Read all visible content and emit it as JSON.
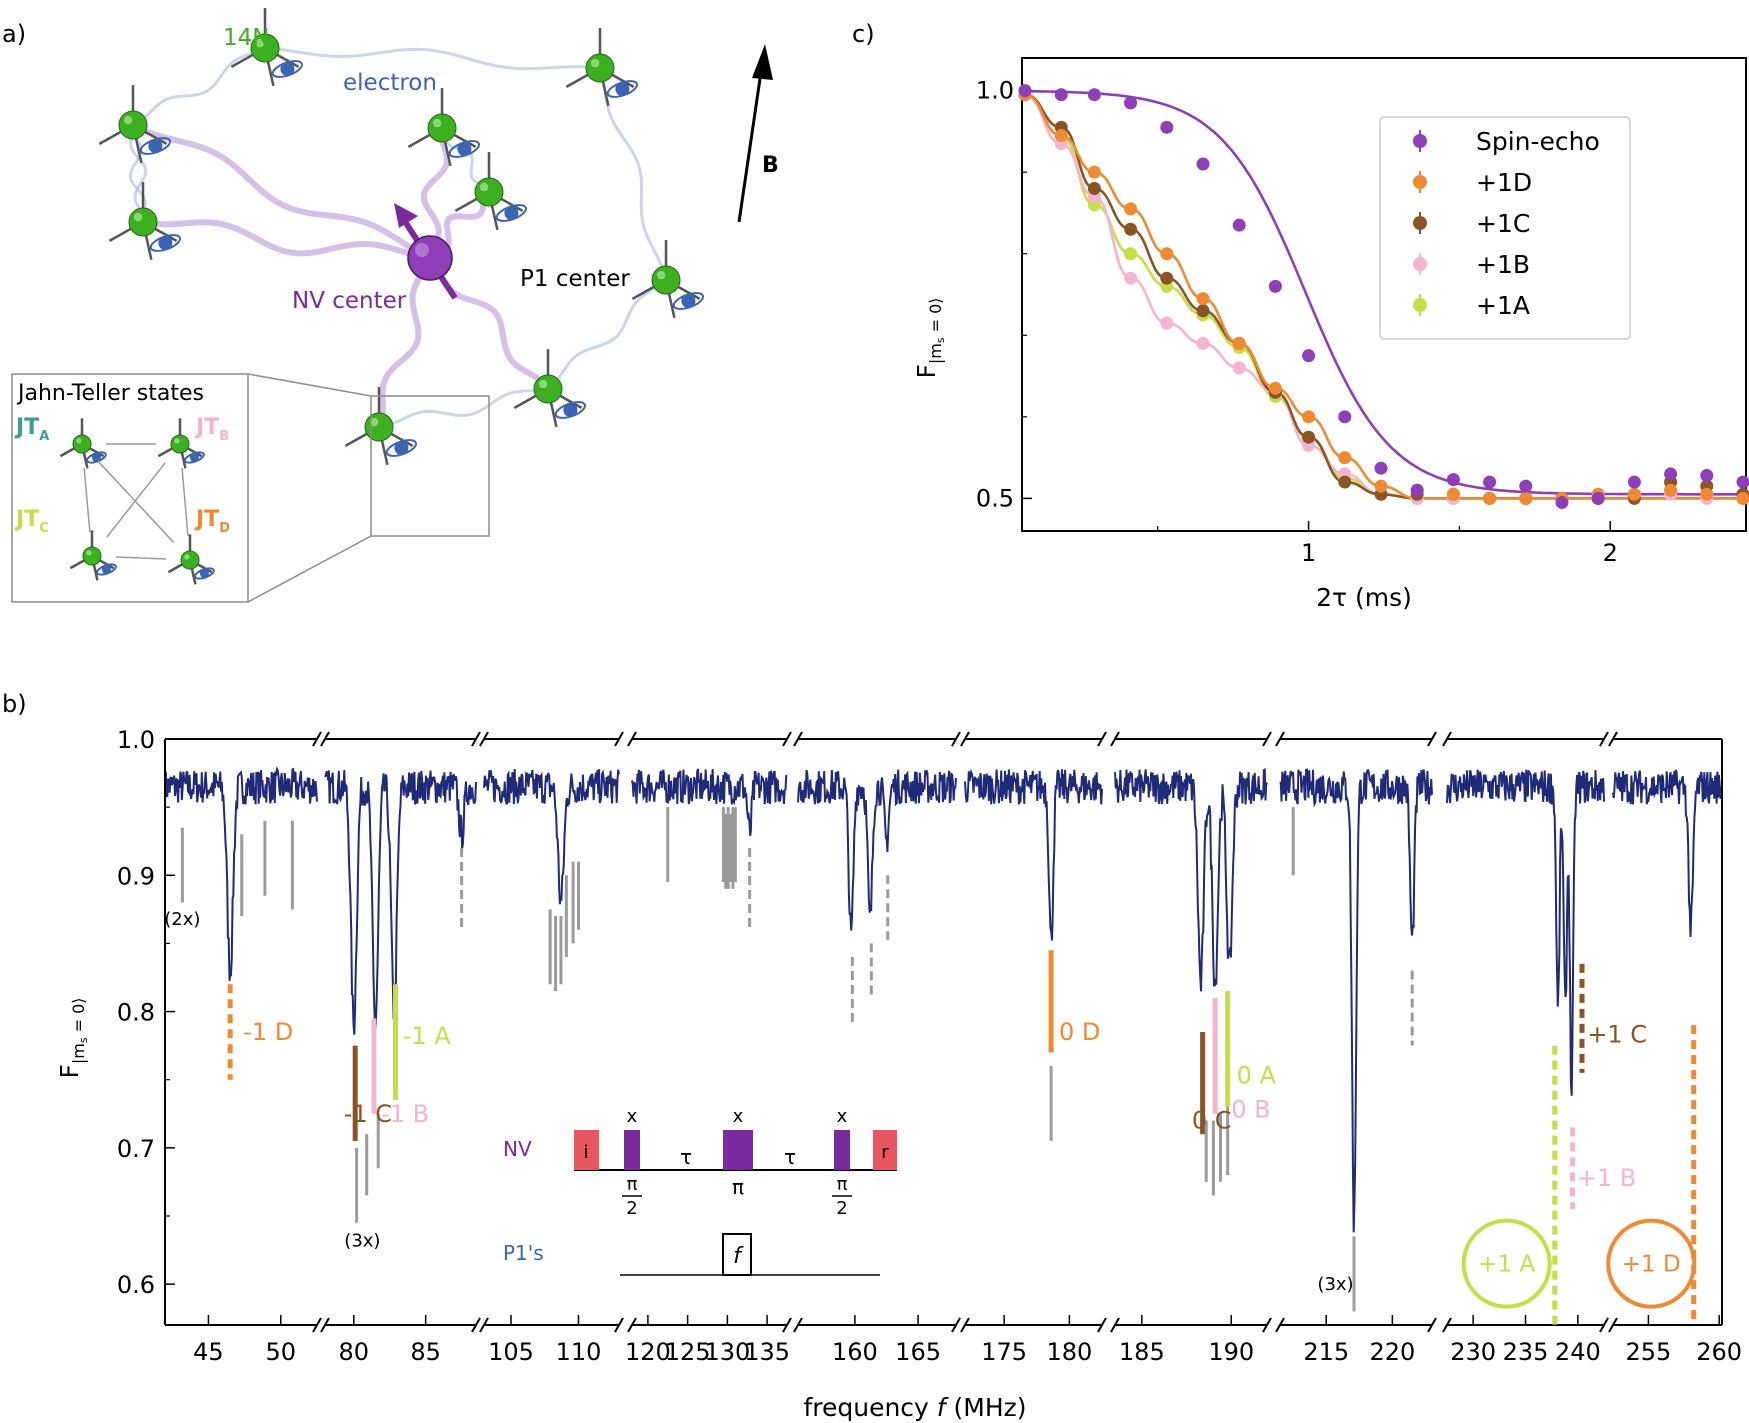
{
  "panel_labels": {
    "a": "a)",
    "b": "b)",
    "c": "c)"
  },
  "colors": {
    "spectrum": "#1f2a78",
    "spin_echo": "#8e3fb8",
    "D": "#f08a32",
    "C": "#8b5424",
    "B": "#f6b3cf",
    "A": "#c3de46",
    "gray": "#9a9a9a",
    "nitrogen": "#3cb020",
    "electron": "#3a64b4",
    "nv": "#7a2a9c",
    "jt_A": "#3c9e8e"
  },
  "panel_a": {
    "label_14n": "14N",
    "label_electron": "electron",
    "label_nv": "NV center",
    "label_p1": "P1 center",
    "label_b": "B",
    "inset_title": "Jahn-Teller states",
    "jt_letter": "JT",
    "jt_subs": [
      "A",
      "B",
      "C",
      "D"
    ],
    "icons": [
      "nitrogen-atom-icon",
      "electron-spin-icon",
      "nv-spin-arrow-icon",
      "magnetic-field-arrow-icon"
    ]
  },
  "chart_data": [
    {
      "type": "line",
      "id": "panel_c",
      "xlabel": "2τ (ms)",
      "ylabel_main": "F",
      "ylabel_sub": "|m",
      "ylabel_sub2": "s",
      "ylabel_sub3": " = 0⟩",
      "xlim": [
        0.05,
        2.45
      ],
      "ylim": [
        0.46,
        1.04
      ],
      "xticks": [
        1,
        2
      ],
      "xtick_labels": [
        "1",
        "2"
      ],
      "yticks": [
        0.5,
        1.0
      ],
      "ytick_labels": [
        "0.5",
        "1.0"
      ],
      "legend": [
        "Spin-echo",
        "+1D",
        "+1C",
        "+1B",
        "+1A"
      ],
      "legend_position": "top-right",
      "series": [
        {
          "name": "Spin-echo",
          "color": "#8e3fb8",
          "x": [
            0.06,
            0.18,
            0.29,
            0.41,
            0.53,
            0.65,
            0.77,
            0.89,
            1.0,
            1.12,
            1.24,
            1.36,
            1.48,
            1.6,
            1.72,
            1.84,
            1.96,
            2.08,
            2.2,
            2.32,
            2.44
          ],
          "y": [
            1.0,
            0.995,
            0.995,
            0.985,
            0.955,
            0.91,
            0.835,
            0.76,
            0.675,
            0.6,
            0.537,
            0.51,
            0.523,
            0.52,
            0.515,
            0.495,
            0.5,
            0.52,
            0.53,
            0.528,
            0.52
          ],
          "fit_center": 0.99,
          "fit_width": 0.14
        },
        {
          "name": "+1D",
          "color": "#f08a32",
          "x": [
            0.06,
            0.18,
            0.29,
            0.41,
            0.53,
            0.65,
            0.77,
            0.89,
            1.0,
            1.12,
            1.24,
            1.36,
            1.48,
            1.6,
            1.72,
            1.84,
            1.96,
            2.08,
            2.2,
            2.32,
            2.44
          ],
          "y": [
            0.995,
            0.945,
            0.9,
            0.855,
            0.8,
            0.745,
            0.69,
            0.635,
            0.6,
            0.55,
            0.515,
            0.51,
            0.505,
            0.5,
            0.5,
            0.5,
            0.505,
            0.505,
            0.51,
            0.505,
            0.5
          ]
        },
        {
          "name": "+1C",
          "color": "#8b5424",
          "x": [
            0.06,
            0.18,
            0.29,
            0.41,
            0.53,
            0.65,
            0.77,
            0.89,
            1.0,
            1.12,
            1.24,
            1.36,
            1.48,
            1.6,
            1.72,
            1.84,
            1.96,
            2.08,
            2.2,
            2.32,
            2.44
          ],
          "y": [
            0.995,
            0.955,
            0.88,
            0.83,
            0.77,
            0.73,
            0.69,
            0.63,
            0.575,
            0.52,
            0.505,
            0.505,
            0.505,
            0.5,
            0.5,
            0.5,
            0.5,
            0.5,
            0.52,
            0.515,
            0.505
          ]
        },
        {
          "name": "+1B",
          "color": "#f6b3cf",
          "x": [
            0.06,
            0.18,
            0.29,
            0.41,
            0.53,
            0.65,
            0.77,
            0.89,
            1.0,
            1.12,
            1.24,
            1.36,
            1.48,
            1.6,
            1.72,
            1.84,
            1.96,
            2.08,
            2.2,
            2.32,
            2.44
          ],
          "y": [
            0.995,
            0.935,
            0.87,
            0.77,
            0.715,
            0.69,
            0.66,
            0.63,
            0.565,
            0.53,
            0.505,
            0.5,
            0.5,
            0.5,
            0.5,
            0.5,
            0.5,
            0.505,
            0.505,
            0.5,
            0.5
          ]
        },
        {
          "name": "+1A",
          "color": "#c3de46",
          "x": [
            0.06,
            0.18,
            0.29,
            0.41,
            0.53,
            0.65,
            0.77,
            0.89,
            1.0,
            1.12,
            1.24,
            1.36,
            1.48,
            1.6,
            1.72,
            1.84,
            1.96,
            2.08,
            2.2,
            2.32,
            2.44
          ],
          "y": [
            0.995,
            0.945,
            0.86,
            0.8,
            0.76,
            0.725,
            0.685,
            0.625,
            0.575,
            0.525,
            0.505,
            0.5,
            0.5,
            0.5,
            0.5,
            0.5,
            0.505,
            0.505,
            0.51,
            0.505,
            0.5
          ]
        }
      ]
    },
    {
      "type": "line",
      "id": "panel_b",
      "xlabel_pre": "frequency ",
      "xlabel_var": "f",
      "xlabel_post": " (MHz)",
      "ylabel_main": "F",
      "ylabel_sub": "|m",
      "ylabel_sub2": "s",
      "ylabel_sub3": " = 0⟩",
      "ylim": [
        0.57,
        1.0
      ],
      "yticks": [
        0.6,
        0.7,
        0.8,
        0.9,
        1.0
      ],
      "ytick_labels": [
        "0.6",
        "0.7",
        "0.8",
        "0.9",
        "1.0"
      ],
      "baseline": 0.965,
      "segments": [
        {
          "range": [
            42,
            52.5
          ],
          "ticks": [
            45,
            50
          ],
          "dips": [
            {
              "f": 46.5,
              "d": 0.83,
              "w": 0.28
            }
          ]
        },
        {
          "range": [
            78,
            88.5
          ],
          "ticks": [
            80,
            85
          ],
          "dips": [
            {
              "f": 80,
              "d": 0.79,
              "w": 0.28
            },
            {
              "f": 81.5,
              "d": 0.79,
              "w": 0.28
            },
            {
              "f": 82.8,
              "d": 0.8,
              "w": 0.28
            },
            {
              "f": 87.5,
              "d": 0.93,
              "w": 0.25
            }
          ]
        },
        {
          "range": [
            103,
            113
          ],
          "ticks": [
            105,
            110
          ],
          "dips": [
            {
              "f": 108.7,
              "d": 0.88,
              "w": 0.3
            }
          ]
        },
        {
          "range": [
            118,
            137.5
          ],
          "ticks": [
            120,
            125,
            130,
            135
          ],
          "dips": [
            {
              "f": 132.8,
              "d": 0.93,
              "w": 0.35
            }
          ]
        },
        {
          "range": [
            155.5,
            168
          ],
          "ticks": [
            160,
            165
          ],
          "dips": [
            {
              "f": 159.7,
              "d": 0.855,
              "w": 0.25
            },
            {
              "f": 161.2,
              "d": 0.865,
              "w": 0.25
            },
            {
              "f": 162.5,
              "d": 0.925,
              "w": 0.25
            }
          ]
        },
        {
          "range": [
            172,
            182.5
          ],
          "ticks": [
            175,
            180
          ],
          "dips": [
            {
              "f": 178.6,
              "d": 0.85,
              "w": 0.22
            }
          ]
        },
        {
          "range": [
            183.5,
            192
          ],
          "ticks": [
            185,
            190
          ],
          "dips": [
            {
              "f": 188.3,
              "d": 0.82,
              "w": 0.22
            },
            {
              "f": 189.1,
              "d": 0.82,
              "w": 0.22
            },
            {
              "f": 189.9,
              "d": 0.83,
              "w": 0.22
            }
          ]
        },
        {
          "range": [
            211.5,
            223
          ],
          "ticks": [
            215,
            220
          ],
          "dips": [
            {
              "f": 217.1,
              "d": 0.645,
              "w": 0.22
            },
            {
              "f": 221.5,
              "d": 0.85,
              "w": 0.22
            }
          ]
        },
        {
          "range": [
            227.5,
            242.5
          ],
          "ticks": [
            230,
            235,
            240
          ],
          "dips": [
            {
              "f": 238.1,
              "d": 0.8,
              "w": 0.22
            },
            {
              "f": 238.8,
              "d": 0.8,
              "w": 0.22
            },
            {
              "f": 239.4,
              "d": 0.74,
              "w": 0.22
            }
          ]
        },
        {
          "range": [
            252.5,
            260.2
          ],
          "ticks": [
            255,
            260
          ],
          "dips": [
            {
              "f": 258,
              "d": 0.86,
              "w": 0.22
            }
          ]
        }
      ],
      "markers": [
        {
          "f": 43.2,
          "top": 0.935,
          "bottom": 0.88,
          "color": "#9a9a9a",
          "dash": false
        },
        {
          "f": 47.3,
          "top": 0.93,
          "bottom": 0.87,
          "color": "#9a9a9a",
          "dash": false
        },
        {
          "f": 48.9,
          "top": 0.94,
          "bottom": 0.885,
          "color": "#9a9a9a",
          "dash": false
        },
        {
          "f": 50.8,
          "top": 0.94,
          "bottom": 0.875,
          "color": "#9a9a9a",
          "dash": false
        },
        {
          "f": 46.5,
          "top": 0.82,
          "bottom": 0.75,
          "color": "#f08a32",
          "dash": true
        },
        {
          "f": 80.1,
          "top": 0.775,
          "bottom": 0.705,
          "color": "#8b5424",
          "dash": false
        },
        {
          "f": 81.4,
          "top": 0.795,
          "bottom": 0.725,
          "color": "#f6b3cf",
          "dash": false
        },
        {
          "f": 82.9,
          "top": 0.82,
          "bottom": 0.735,
          "color": "#c3de46",
          "dash": false
        },
        {
          "f": 80.2,
          "top": 0.7,
          "bottom": 0.645,
          "color": "#9a9a9a",
          "dash": false
        },
        {
          "f": 80.9,
          "top": 0.71,
          "bottom": 0.665,
          "color": "#9a9a9a",
          "dash": false
        },
        {
          "f": 81.7,
          "top": 0.725,
          "bottom": 0.685,
          "color": "#9a9a9a",
          "dash": false
        },
        {
          "f": 87.5,
          "top": 0.92,
          "bottom": 0.86,
          "color": "#9a9a9a",
          "dash": true
        },
        {
          "f": 107.9,
          "top": 0.875,
          "bottom": 0.82,
          "color": "#9a9a9a",
          "dash": false
        },
        {
          "f": 108.3,
          "top": 0.87,
          "bottom": 0.815,
          "color": "#9a9a9a",
          "dash": false
        },
        {
          "f": 108.7,
          "top": 0.87,
          "bottom": 0.82,
          "color": "#9a9a9a",
          "dash": false
        },
        {
          "f": 109.1,
          "top": 0.9,
          "bottom": 0.84,
          "color": "#9a9a9a",
          "dash": false
        },
        {
          "f": 109.6,
          "top": 0.91,
          "bottom": 0.85,
          "color": "#9a9a9a",
          "dash": false
        },
        {
          "f": 110,
          "top": 0.91,
          "bottom": 0.86,
          "color": "#9a9a9a",
          "dash": false
        },
        {
          "f": 122.5,
          "top": 0.95,
          "bottom": 0.895,
          "color": "#9a9a9a",
          "dash": false
        },
        {
          "f": 129.5,
          "top": 0.95,
          "bottom": 0.895,
          "color": "#9a9a9a",
          "dash": false
        },
        {
          "f": 129.8,
          "top": 0.945,
          "bottom": 0.89,
          "color": "#9a9a9a",
          "dash": false
        },
        {
          "f": 130.1,
          "top": 0.95,
          "bottom": 0.89,
          "color": "#9a9a9a",
          "dash": false
        },
        {
          "f": 130.4,
          "top": 0.945,
          "bottom": 0.895,
          "color": "#9a9a9a",
          "dash": false
        },
        {
          "f": 130.7,
          "top": 0.95,
          "bottom": 0.89,
          "color": "#9a9a9a",
          "dash": false
        },
        {
          "f": 131.0,
          "top": 0.95,
          "bottom": 0.895,
          "color": "#9a9a9a",
          "dash": false
        },
        {
          "f": 132.8,
          "top": 0.92,
          "bottom": 0.86,
          "color": "#9a9a9a",
          "dash": true
        },
        {
          "f": 159.8,
          "top": 0.84,
          "bottom": 0.79,
          "color": "#9a9a9a",
          "dash": true
        },
        {
          "f": 161.3,
          "top": 0.85,
          "bottom": 0.81,
          "color": "#9a9a9a",
          "dash": true
        },
        {
          "f": 162.6,
          "top": 0.9,
          "bottom": 0.85,
          "color": "#9a9a9a",
          "dash": true
        },
        {
          "f": 178.6,
          "top": 0.845,
          "bottom": 0.77,
          "color": "#f08a32",
          "dash": false
        },
        {
          "f": 178.6,
          "top": 0.76,
          "bottom": 0.705,
          "color": "#9a9a9a",
          "dash": false
        },
        {
          "f": 188.4,
          "top": 0.785,
          "bottom": 0.71,
          "color": "#8b5424",
          "dash": false
        },
        {
          "f": 189.1,
          "top": 0.81,
          "bottom": 0.725,
          "color": "#f6b3cf",
          "dash": false
        },
        {
          "f": 189.8,
          "top": 0.815,
          "bottom": 0.73,
          "color": "#c3de46",
          "dash": false
        },
        {
          "f": 188.6,
          "top": 0.72,
          "bottom": 0.675,
          "color": "#9a9a9a",
          "dash": false
        },
        {
          "f": 189.0,
          "top": 0.72,
          "bottom": 0.665,
          "color": "#9a9a9a",
          "dash": false
        },
        {
          "f": 189.4,
          "top": 0.725,
          "bottom": 0.675,
          "color": "#9a9a9a",
          "dash": false
        },
        {
          "f": 189.8,
          "top": 0.73,
          "bottom": 0.68,
          "color": "#9a9a9a",
          "dash": false
        },
        {
          "f": 212.5,
          "top": 0.95,
          "bottom": 0.9,
          "color": "#9a9a9a",
          "dash": false
        },
        {
          "f": 217.1,
          "top": 0.635,
          "bottom": 0.58,
          "color": "#9a9a9a",
          "dash": false
        },
        {
          "f": 221.5,
          "top": 0.83,
          "bottom": 0.775,
          "color": "#9a9a9a",
          "dash": true
        },
        {
          "f": 237.8,
          "top": 0.775,
          "bottom": 0.57,
          "color": "#c3de46",
          "dash": true
        },
        {
          "f": 239.5,
          "top": 0.715,
          "bottom": 0.655,
          "color": "#f6b3cf",
          "dash": true
        },
        {
          "f": 240.4,
          "top": 0.835,
          "bottom": 0.755,
          "color": "#8b5424",
          "dash": true
        },
        {
          "f": 258.2,
          "top": 0.79,
          "bottom": 0.57,
          "color": "#f08a32",
          "dash": true
        }
      ],
      "peak_labels": [
        {
          "text": "-1 D",
          "f": 47.4,
          "y": 0.785,
          "color": "#f08a32"
        },
        {
          "text": "-1 C",
          "f": 79.3,
          "y": 0.725,
          "color": "#8b5424"
        },
        {
          "text": "-1 B",
          "f": 81.9,
          "y": 0.725,
          "color": "#f6b3cf"
        },
        {
          "text": "-1 A",
          "f": 83.4,
          "y": 0.782,
          "color": "#c3de46"
        },
        {
          "text": "0 D",
          "f": 179.2,
          "y": 0.785,
          "color": "#f08a32"
        },
        {
          "text": "0 C",
          "f": 187.8,
          "y": 0.72,
          "color": "#8b5424"
        },
        {
          "text": "0 A",
          "f": 190.3,
          "y": 0.753,
          "color": "#c3de46"
        },
        {
          "text": "0 B",
          "f": 190.0,
          "y": 0.728,
          "color": "#f6b3cf"
        },
        {
          "text": "+1 C",
          "f": 240.9,
          "y": 0.783,
          "color": "#8b5424"
        },
        {
          "text": "+1 B",
          "f": 239.9,
          "y": 0.678,
          "color": "#f6b3cf"
        }
      ],
      "multiplicity_labels": [
        {
          "text": "(2x)",
          "f": 43.2,
          "y": 0.868
        },
        {
          "text": "(3x)",
          "f": 80.6,
          "y": 0.632
        },
        {
          "text": "(3x)",
          "f": 215.7,
          "y": 0.6
        }
      ],
      "circled_labels": [
        {
          "text": "+1 A",
          "f": 233.2,
          "y": 0.615,
          "color": "#c3de46"
        },
        {
          "text": "+1 D",
          "f": 255.2,
          "y": 0.615,
          "color": "#f08a32"
        }
      ],
      "pulse_sequence": {
        "nv_label": "NV",
        "p1_label": "P1's",
        "init_label": "i",
        "readout_label": "r",
        "x_label": "x",
        "tau_label": "τ",
        "pi_half_num": "π",
        "pi_half_den": "2",
        "pi_label": "π",
        "f_label": "f"
      }
    }
  ]
}
